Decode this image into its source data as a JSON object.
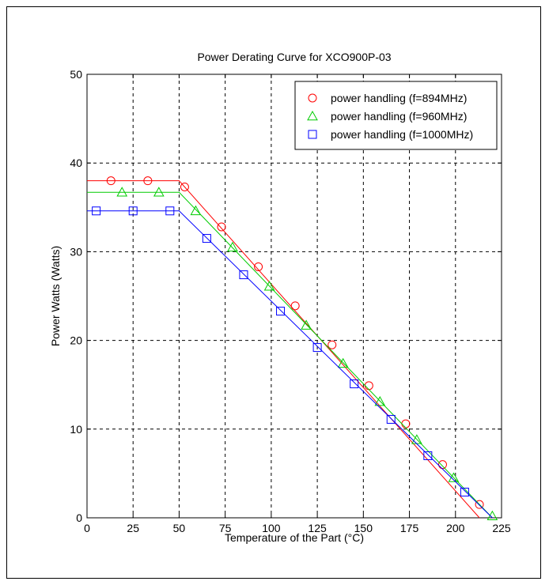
{
  "chart_data": {
    "type": "line",
    "title": "Power Derating Curve for XCO900P-03",
    "xlabel": "Temperature of the Part (°C)",
    "ylabel": "Power Watts (Watts)",
    "xlim": [
      0,
      225
    ],
    "ylim": [
      0,
      50
    ],
    "xticks": [
      0,
      25,
      50,
      75,
      100,
      125,
      150,
      175,
      200,
      225
    ],
    "yticks": [
      0,
      10,
      20,
      30,
      40,
      50
    ],
    "grid": true,
    "legend_position": "top-right",
    "series": [
      {
        "name": "power handling (f=894MHz)",
        "color": "#ff0000",
        "marker": "circle",
        "line": [
          [
            0,
            38.0
          ],
          [
            50,
            38.0
          ],
          [
            213,
            0
          ]
        ],
        "points": [
          [
            13,
            38.0
          ],
          [
            33,
            38.0
          ],
          [
            53,
            37.3
          ],
          [
            73,
            32.8
          ],
          [
            93,
            28.3
          ],
          [
            113,
            23.9
          ],
          [
            133,
            19.5
          ],
          [
            153,
            14.9
          ],
          [
            173,
            10.6
          ],
          [
            193,
            6.0
          ],
          [
            213,
            1.5
          ]
        ]
      },
      {
        "name": "power handling (f=960MHz)",
        "color": "#00cc00",
        "marker": "triangle",
        "line": [
          [
            0,
            36.7
          ],
          [
            50,
            36.7
          ],
          [
            220,
            0
          ]
        ],
        "points": [
          [
            19,
            36.7
          ],
          [
            39,
            36.7
          ],
          [
            59,
            34.6
          ],
          [
            79,
            30.5
          ],
          [
            99,
            26.1
          ],
          [
            119,
            21.7
          ],
          [
            139,
            17.4
          ],
          [
            159,
            13.1
          ],
          [
            179,
            8.8
          ],
          [
            199,
            4.5
          ],
          [
            220,
            0.2
          ]
        ]
      },
      {
        "name": "power handling (f=1000MHz)",
        "color": "#0000ff",
        "marker": "square",
        "line": [
          [
            0,
            34.6
          ],
          [
            50,
            34.6
          ],
          [
            220,
            0
          ]
        ],
        "points": [
          [
            5,
            34.6
          ],
          [
            25,
            34.6
          ],
          [
            45,
            34.6
          ],
          [
            65,
            31.5
          ],
          [
            85,
            27.4
          ],
          [
            105,
            23.3
          ],
          [
            125,
            19.2
          ],
          [
            145,
            15.1
          ],
          [
            165,
            11.1
          ],
          [
            185,
            7.0
          ],
          [
            205,
            2.9
          ]
        ]
      }
    ]
  }
}
